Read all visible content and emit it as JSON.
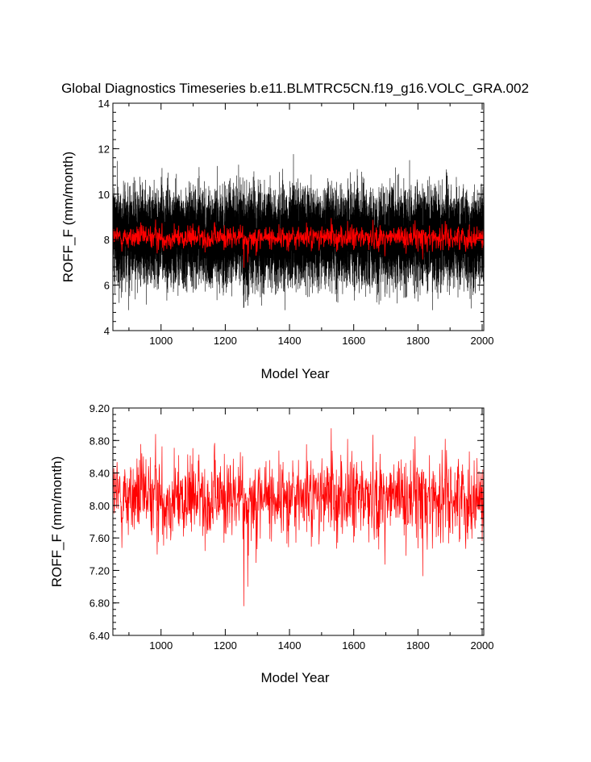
{
  "chart_data": [
    {
      "type": "line",
      "title": "Global Diagnostics Timeseries b.e11.BLMTRC5CN.f19_g16.VOLC_GRA.002",
      "xlabel": "Model Year",
      "ylabel": "ROFF_F (mm/month)",
      "xlim": [
        850,
        2005
      ],
      "ylim": [
        4,
        14
      ],
      "x_ticks": [
        "1000",
        "1200",
        "1400",
        "1600",
        "1800",
        "2000"
      ],
      "y_ticks": [
        "4",
        "6",
        "8",
        "10",
        "12",
        "14"
      ],
      "x_range": [
        850,
        2005
      ],
      "grid": false,
      "legend": "none",
      "series": [
        {
          "color": "#000000",
          "frequency": "monthly",
          "mean": 8.1,
          "typical_range": [
            6.2,
            10.3
          ],
          "min": 4.9,
          "max": 12.2
        },
        {
          "color": "#ff0000",
          "frequency": "annual",
          "mean": 8.1,
          "typical_range": [
            7.4,
            8.6
          ],
          "min": 6.75,
          "max": 8.95
        }
      ]
    },
    {
      "type": "line",
      "title": "",
      "xlabel": "Model Year",
      "ylabel": "ROFF_F (mm/month)",
      "xlim": [
        850,
        2005
      ],
      "ylim": [
        6.4,
        9.2
      ],
      "x_ticks": [
        "1000",
        "1200",
        "1400",
        "1600",
        "1800",
        "2000"
      ],
      "y_ticks": [
        "6.40",
        "6.80",
        "7.20",
        "7.60",
        "8.00",
        "8.40",
        "8.80",
        "9.20"
      ],
      "grid": false,
      "legend": "none",
      "series": [
        {
          "color": "#ff0000",
          "frequency": "annual",
          "mean": 8.1,
          "typical_range": [
            7.4,
            8.6
          ],
          "min": 6.75,
          "max": 8.95,
          "notable_points": [
            {
              "x": 983,
              "y": 8.88
            },
            {
              "x": 1258,
              "y": 6.76
            },
            {
              "x": 1270,
              "y": 7.0
            },
            {
              "x": 1530,
              "y": 8.95
            },
            {
              "x": 1815,
              "y": 7.13
            },
            {
              "x": 1885,
              "y": 8.82
            }
          ]
        }
      ]
    }
  ]
}
